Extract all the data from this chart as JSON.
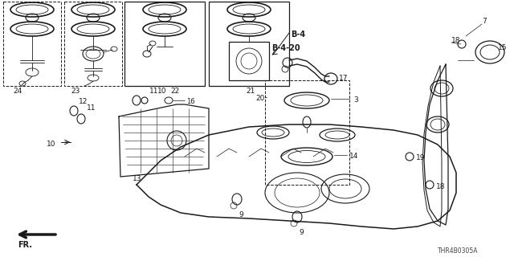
{
  "bg_color": "#ffffff",
  "line_color": "#1a1a1a",
  "diagram_code": "THR4B0305A",
  "figsize": [
    6.4,
    3.2
  ],
  "dpi": 100
}
